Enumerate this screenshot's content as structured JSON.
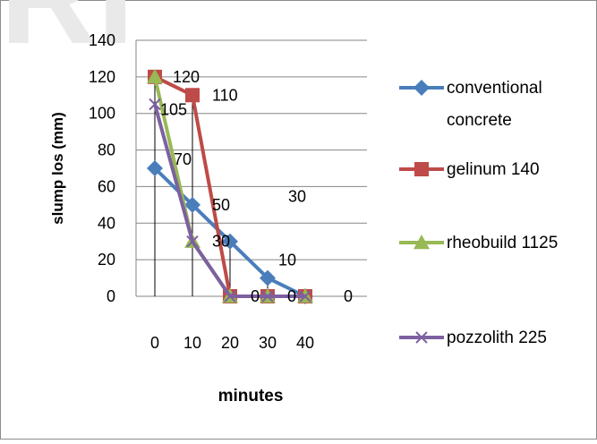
{
  "chart_data": {
    "type": "line",
    "title": "",
    "xlabel": "minutes",
    "ylabel": "slump los (mm)",
    "categories": [
      "0",
      "10",
      "20",
      "30",
      "40"
    ],
    "ylim": [
      0,
      140
    ],
    "yticks": [
      "0",
      "20",
      "40",
      "60",
      "80",
      "100",
      "120",
      "140"
    ],
    "grid": true,
    "legend_position": "right",
    "series": [
      {
        "name": "conventional concrete",
        "values": [
          70,
          50,
          30,
          10,
          0
        ],
        "color": "#4a7ebb",
        "marker": "diamond"
      },
      {
        "name": "gelinum 140",
        "values": [
          120,
          110,
          0,
          0,
          0
        ],
        "color": "#be4b48",
        "marker": "square"
      },
      {
        "name": "rheobuild 1125",
        "values": [
          120,
          30,
          0,
          0,
          0
        ],
        "color": "#98b954",
        "marker": "triangle"
      },
      {
        "name": "pozzolith 225",
        "values": [
          105,
          30,
          0,
          0,
          0
        ],
        "color": "#7d60a0",
        "marker": "x"
      }
    ],
    "data_labels": [
      {
        "text": "70",
        "series": 0,
        "index": 0
      },
      {
        "text": "50",
        "series": 0,
        "index": 1
      },
      {
        "text": "30",
        "series": 0,
        "index": 2
      },
      {
        "text": "10",
        "series": 0,
        "index": 3
      },
      {
        "text": "0",
        "series": 0,
        "index": 4
      },
      {
        "text": "120",
        "series": 1,
        "index": 0
      },
      {
        "text": "110",
        "series": 1,
        "index": 1
      },
      {
        "text": "0",
        "series": 1,
        "index": 2
      },
      {
        "text": "0",
        "series": 1,
        "index": 3
      },
      {
        "text": "30",
        "series": 2,
        "index": 1
      },
      {
        "text": "105",
        "series": 3,
        "index": 0
      }
    ]
  },
  "watermark": "RI"
}
